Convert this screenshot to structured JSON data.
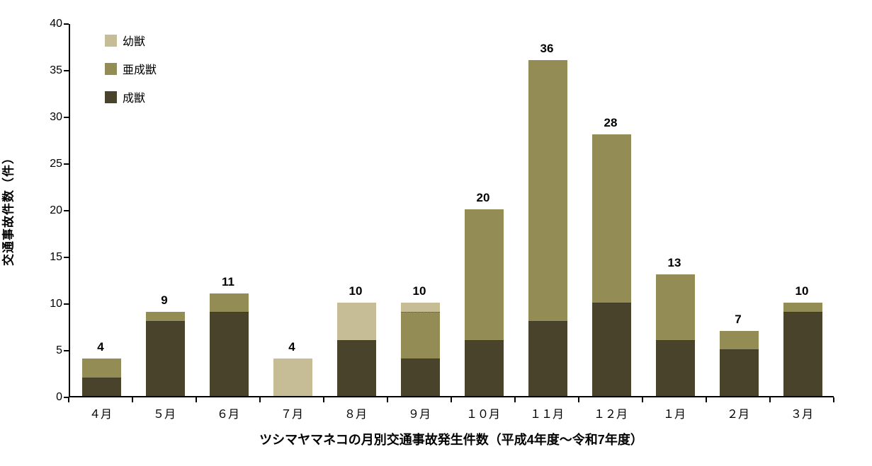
{
  "chart_data": {
    "type": "bar",
    "stacked": true,
    "title": "ツシマヤマネコの月別交通事故発生件数（平成4年度～令和7年度）",
    "ylabel": "交通事故件数（件）",
    "xlabel": "",
    "categories": [
      "４月",
      "５月",
      "６月",
      "７月",
      "８月",
      "９月",
      "１０月",
      "１１月",
      "１２月",
      "１月",
      "２月",
      "３月"
    ],
    "series": [
      {
        "name": "成獣",
        "color": "#49432b",
        "values": [
          2,
          8,
          9,
          0,
          6,
          4,
          6,
          8,
          10,
          6,
          5,
          9
        ]
      },
      {
        "name": "亜成獣",
        "color": "#948c55",
        "values": [
          2,
          1,
          2,
          0,
          0,
          5,
          14,
          28,
          18,
          7,
          2,
          1
        ]
      },
      {
        "name": "幼獣",
        "color": "#c6bd96",
        "values": [
          0,
          0,
          0,
          4,
          4,
          1,
          0,
          0,
          0,
          0,
          0,
          0
        ]
      }
    ],
    "totals": [
      4,
      9,
      11,
      4,
      10,
      10,
      20,
      36,
      28,
      13,
      7,
      10
    ],
    "ylim": [
      0,
      40
    ],
    "ytick_step": 5,
    "yticks": [
      0,
      5,
      10,
      15,
      20,
      25,
      30,
      35,
      40
    ],
    "legend": {
      "position": "top-left-inside",
      "items": [
        "幼獣",
        "亜成獣",
        "成獣"
      ]
    },
    "grid": false
  },
  "colors": {
    "axis": "#000000",
    "text": "#000000",
    "background": "#ffffff"
  }
}
